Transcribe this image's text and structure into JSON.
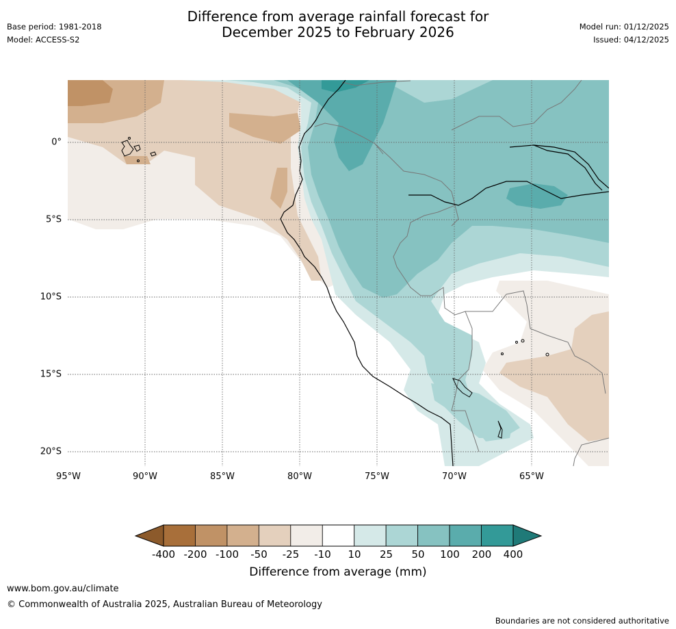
{
  "header": {
    "title_line1": "Difference from average rainfall forecast for",
    "title_line2": "December 2025 to February 2026",
    "base_period": "Base period: 1981-2018",
    "model": "Model: ACCESS-S2",
    "model_run": "Model run: 01/12/2025",
    "issued": "Issued: 04/12/2025"
  },
  "map": {
    "lat_ticks": [
      "0°",
      "5°S",
      "10°S",
      "15°S",
      "20°S"
    ],
    "lon_ticks": [
      "95°W",
      "90°W",
      "85°W",
      "80°W",
      "75°W",
      "70°W",
      "65°W"
    ]
  },
  "colorbar": {
    "title": "Difference from average (mm)",
    "labels": [
      "-400",
      "-200",
      "-100",
      "-50",
      "-25",
      "-10",
      "10",
      "25",
      "50",
      "100",
      "200",
      "400"
    ],
    "colors": [
      "#8c5a2b",
      "#a86f3a",
      "#c09266",
      "#d3b08e",
      "#e4d0bd",
      "#f2ede8",
      "#ffffff",
      "#d5e9e8",
      "#acd6d5",
      "#86c2c1",
      "#5aacac",
      "#339a98",
      "#1f7a78"
    ]
  },
  "footer": {
    "website": "www.bom.gov.au/climate",
    "copyright": "© Commonwealth of Australia 2025, Australian Bureau of Meteorology",
    "disclaimer": "Boundaries are not considered authoritative"
  }
}
